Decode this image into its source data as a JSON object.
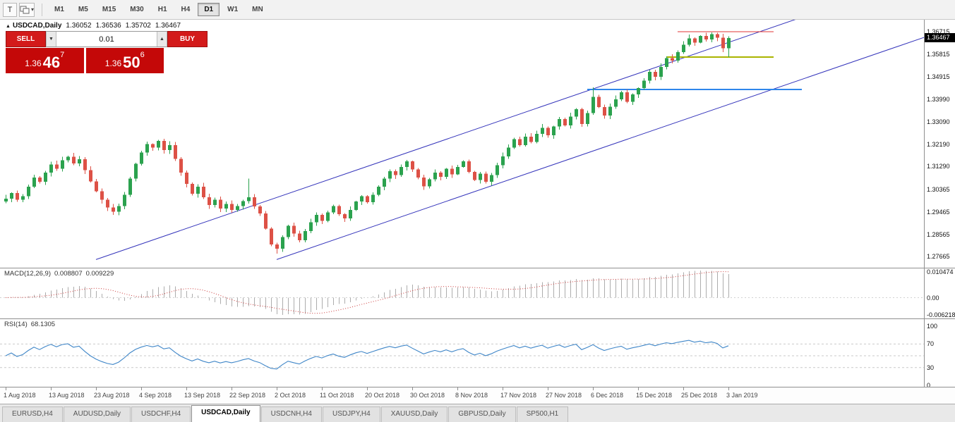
{
  "toolbar": {
    "chart_icon_label": "T",
    "timeframes": [
      "M1",
      "M5",
      "M15",
      "M30",
      "H1",
      "H4",
      "D1",
      "W1",
      "MN"
    ],
    "selected_timeframe": "D1"
  },
  "trade_widget": {
    "sell_label": "SELL",
    "buy_label": "BUY",
    "lot_size": "0.01",
    "bid": {
      "prefix": "1.36",
      "big": "46",
      "sup": "7"
    },
    "ask": {
      "prefix": "1.36",
      "big": "50",
      "sup": "6"
    }
  },
  "chart": {
    "title": "USDCAD,Daily",
    "open": "1.36052",
    "high": "1.36536",
    "low": "1.35702",
    "close": "1.36467",
    "current_price": "1.36467",
    "price_axis_labels": [
      "1.36715",
      "1.35815",
      "1.34915",
      "1.33990",
      "1.33090",
      "1.32190",
      "1.31290",
      "1.30365",
      "1.29465",
      "1.28565",
      "1.27665"
    ]
  },
  "macd": {
    "name": "MACD(12,26,9)",
    "main_value": "0.008807",
    "signal_value": "0.009229",
    "axis_labels": [
      "0.010474",
      "0.00",
      "-0.006218"
    ]
  },
  "rsi": {
    "name": "RSI(14)",
    "value": "68.1305",
    "axis_labels": [
      "100",
      "70",
      "30",
      "0"
    ]
  },
  "date_labels": [
    "1 Aug 2018",
    "13 Aug 2018",
    "23 Aug 2018",
    "4 Sep 2018",
    "13 Sep 2018",
    "22 Sep 2018",
    "2 Oct 2018",
    "11 Oct 2018",
    "20 Oct 2018",
    "30 Oct 2018",
    "8 Nov 2018",
    "17 Nov 2018",
    "27 Nov 2018",
    "6 Dec 2018",
    "15 Dec 2018",
    "25 Dec 2018",
    "3 Jan 2019"
  ],
  "tabs": [
    "EURUSD,H4",
    "AUDUSD,Daily",
    "USDCHF,H4",
    "USDCAD,Daily",
    "USDCNH,H4",
    "USDJPY,H4",
    "XAUUSD,Daily",
    "GBPUSD,Daily",
    "SP500,H1"
  ],
  "chart_data": {
    "type": "candlestick",
    "symbol": "USDCAD",
    "timeframe": "Daily",
    "spacing": 8,
    "x_label_every": 8,
    "price_range": [
      1.2722,
      1.372
    ],
    "ohlc_last": {
      "o": 1.36052,
      "h": 1.36536,
      "l": 1.35702,
      "c": 1.36467
    },
    "closes": [
      1.3,
      1.3022,
      1.2996,
      1.301,
      1.3048,
      1.3085,
      1.3068,
      1.3105,
      1.3138,
      1.312,
      1.3155,
      1.3168,
      1.3142,
      1.3158,
      1.3115,
      1.307,
      1.303,
      1.2995,
      1.2965,
      1.2948,
      1.297,
      1.3015,
      1.308,
      1.314,
      1.3185,
      1.322,
      1.3205,
      1.3232,
      1.3195,
      1.3215,
      1.316,
      1.3105,
      1.306,
      1.302,
      1.3048,
      1.3005,
      1.2975,
      1.2995,
      1.296,
      1.2978,
      1.2955,
      1.297,
      1.299,
      1.3005,
      1.2968,
      1.294,
      1.288,
      1.2815,
      1.2798,
      1.2845,
      1.289,
      1.286,
      1.2832,
      1.287,
      1.2905,
      1.2935,
      1.291,
      1.2945,
      1.297,
      1.2938,
      1.292,
      1.2955,
      1.2988,
      1.301,
      1.2985,
      1.3015,
      1.3048,
      1.308,
      1.311,
      1.3095,
      1.3128,
      1.315,
      1.3118,
      1.3085,
      1.305,
      1.3078,
      1.3105,
      1.3088,
      1.312,
      1.3098,
      1.3128,
      1.315,
      1.3108,
      1.3075,
      1.31,
      1.3068,
      1.3095,
      1.3135,
      1.317,
      1.3205,
      1.324,
      1.3215,
      1.325,
      1.3228,
      1.326,
      1.3285,
      1.3255,
      1.329,
      1.332,
      1.3295,
      1.333,
      1.336,
      1.33,
      1.3345,
      1.341,
      1.3368,
      1.3335,
      1.337,
      1.34,
      1.3428,
      1.339,
      1.342,
      1.3445,
      1.3475,
      1.351,
      1.349,
      1.353,
      1.3565,
      1.3555,
      1.359,
      1.362,
      1.3645,
      1.3628,
      1.3655,
      1.364,
      1.3662,
      1.3648,
      1.3605,
      1.36467
    ],
    "wick_overrides": {
      "43": {
        "u": 0.0075,
        "d": 0.001
      },
      "48": {
        "u": 0.0008,
        "d": 0.002
      },
      "104": {
        "u": 0.0038,
        "d": 0.0008
      }
    },
    "h_lines": [
      {
        "price": 1.36715,
        "i1": 119,
        "i2": 136,
        "color": "#e03535",
        "width": 1
      },
      {
        "price": 1.357,
        "i1": 117,
        "i2": 136,
        "color": "#aab400",
        "width": 2
      },
      {
        "price": 1.344,
        "i1": 103,
        "i2": 141,
        "color": "#2f86eb",
        "width": 2
      }
    ],
    "trend_lines": [
      {
        "i1": 16,
        "p1": 1.2755,
        "i2": 146,
        "p2": 1.3769,
        "color": "#3434bb"
      },
      {
        "i1": 48,
        "p1": 1.2755,
        "i2": 176,
        "p2": 1.3753,
        "color": "#3434bb"
      }
    ],
    "indicators": {
      "macd": [
        12,
        26,
        9
      ],
      "rsi": 14
    },
    "colors": {
      "up": "#2ba24e",
      "down": "#dd5146",
      "macd_hist": "#adadad",
      "macd_signal": "#cc3b3b",
      "rsi_line": "#3f86c8",
      "level_dash": "#c9c9c9"
    }
  }
}
